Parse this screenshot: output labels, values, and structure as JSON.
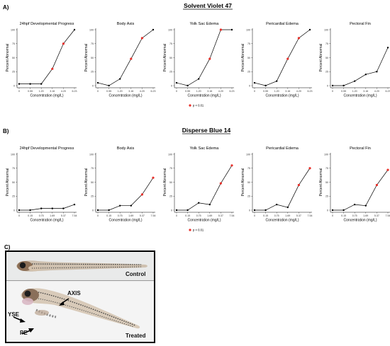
{
  "panel_labels": {
    "a": "A)",
    "b": "B)",
    "c": "C)"
  },
  "sections": [
    {
      "title": "Solvent Violet 47"
    },
    {
      "title": "Disperse Blue 14"
    }
  ],
  "legend": {
    "text": "p < 0.01",
    "color": "#e8302a"
  },
  "line_color": "#000000",
  "sig_color": "#e8302a",
  "chart_data": [
    {
      "type": "line",
      "section": 0,
      "title": "24hpf Developmental Progress",
      "xlabel": "Concentration (mg/L)",
      "ylabel": "Percent Abnormal",
      "categories": [
        "0",
        "0.55",
        "1.20",
        "3.16",
        "4.20",
        "6.23"
      ],
      "values": [
        3,
        3,
        3,
        30,
        75,
        100
      ],
      "significant": [
        false,
        false,
        false,
        true,
        true,
        false
      ],
      "ylim": [
        0,
        100
      ],
      "yticks": [
        0,
        25,
        50,
        75,
        100
      ]
    },
    {
      "type": "line",
      "section": 0,
      "title": "Body Axis",
      "xlabel": "Concentration (mg/L)",
      "ylabel": "Percent Abnormal",
      "categories": [
        "0",
        "0.55",
        "1.20",
        "3.16",
        "4.20",
        "6.23"
      ],
      "values": [
        5,
        0,
        12,
        48,
        85,
        100
      ],
      "significant": [
        false,
        false,
        false,
        true,
        true,
        false
      ],
      "ylim": [
        0,
        100
      ],
      "yticks": [
        0,
        25,
        50,
        75,
        100
      ]
    },
    {
      "type": "line",
      "section": 0,
      "title": "Yolk Sac Edema",
      "xlabel": "Concentration (mg/L)",
      "ylabel": "Percent Abnormal",
      "categories": [
        "0",
        "0.55",
        "1.20",
        "3.16",
        "4.20",
        "6.23"
      ],
      "values": [
        5,
        0,
        12,
        48,
        100,
        100
      ],
      "significant": [
        false,
        false,
        false,
        true,
        true,
        false
      ],
      "ylim": [
        0,
        100
      ],
      "yticks": [
        0,
        25,
        50,
        75,
        100
      ]
    },
    {
      "type": "line",
      "section": 0,
      "title": "Pericardial Edema",
      "xlabel": "Concentration (mg/L)",
      "ylabel": "Percent Abnormal",
      "categories": [
        "0",
        "0.55",
        "1.20",
        "3.16",
        "4.20",
        "6.23"
      ],
      "values": [
        5,
        0,
        8,
        48,
        85,
        100
      ],
      "significant": [
        false,
        false,
        false,
        true,
        true,
        false
      ],
      "ylim": [
        0,
        100
      ],
      "yticks": [
        0,
        25,
        50,
        75,
        100
      ]
    },
    {
      "type": "line",
      "section": 0,
      "title": "Pectoral Fin",
      "xlabel": "Concentration (mg/L)",
      "ylabel": "Percent Abnormal",
      "categories": [
        "0",
        "0.55",
        "1.20",
        "3.16",
        "4.20",
        "6.23"
      ],
      "values": [
        0,
        0,
        8,
        20,
        25,
        68
      ],
      "significant": [
        false,
        false,
        false,
        false,
        false,
        false
      ],
      "ylim": [
        0,
        100
      ],
      "yticks": [
        0,
        25,
        50,
        75,
        100
      ]
    },
    {
      "type": "line",
      "section": 1,
      "title": "24hpf Developmental Progress",
      "xlabel": "Concentration (mg/L)",
      "ylabel": "Percent Abnormal",
      "categories": [
        "0",
        "0.15",
        "0.75",
        "1.69",
        "5.37",
        "7.54"
      ],
      "values": [
        0,
        0,
        3,
        3,
        3,
        10
      ],
      "significant": [
        false,
        false,
        false,
        false,
        false,
        false
      ],
      "ylim": [
        0,
        100
      ],
      "yticks": [
        0,
        25,
        50,
        75,
        100
      ]
    },
    {
      "type": "line",
      "section": 1,
      "title": "Body Axis",
      "xlabel": "Concentration (mg/L)",
      "ylabel": "Percent Abnormal",
      "categories": [
        "0",
        "0.15",
        "0.75",
        "1.69",
        "5.37",
        "7.54"
      ],
      "values": [
        0,
        0,
        8,
        8,
        28,
        58
      ],
      "significant": [
        false,
        false,
        false,
        false,
        true,
        true
      ],
      "ylim": [
        0,
        100
      ],
      "yticks": [
        0,
        25,
        50,
        75,
        100
      ]
    },
    {
      "type": "line",
      "section": 1,
      "title": "Yolk Sac Edema",
      "xlabel": "Concentration (mg/L)",
      "ylabel": "Percent Abnormal",
      "categories": [
        "0",
        "0.15",
        "0.75",
        "1.69",
        "5.37",
        "7.54"
      ],
      "values": [
        0,
        0,
        13,
        10,
        48,
        80
      ],
      "significant": [
        false,
        false,
        false,
        false,
        true,
        true
      ],
      "ylim": [
        0,
        100
      ],
      "yticks": [
        0,
        25,
        50,
        75,
        100
      ]
    },
    {
      "type": "line",
      "section": 1,
      "title": "Pericardial Edema",
      "xlabel": "Concentration (mg/L)",
      "ylabel": "Percent Abnormal",
      "categories": [
        "0",
        "0.15",
        "0.75",
        "1.69",
        "5.37",
        "7.54"
      ],
      "values": [
        0,
        0,
        10,
        5,
        45,
        75
      ],
      "significant": [
        false,
        false,
        false,
        false,
        true,
        true
      ],
      "ylim": [
        0,
        100
      ],
      "yticks": [
        0,
        25,
        50,
        75,
        100
      ]
    },
    {
      "type": "line",
      "section": 1,
      "title": "Pectoral Fin",
      "xlabel": "Concentration (mg/L)",
      "ylabel": "Percent Abnormal",
      "categories": [
        "0",
        "0.15",
        "0.75",
        "1.69",
        "5.37",
        "7.54"
      ],
      "values": [
        0,
        0,
        10,
        8,
        45,
        72
      ],
      "significant": [
        false,
        false,
        false,
        false,
        true,
        true
      ],
      "ylim": [
        0,
        100
      ],
      "yticks": [
        0,
        25,
        50,
        75,
        100
      ]
    }
  ],
  "photo": {
    "control_label": "Control",
    "treated_label": "Treated",
    "axis_label": "AXIS",
    "yse_label": "YSE",
    "pe_label": "PE"
  }
}
